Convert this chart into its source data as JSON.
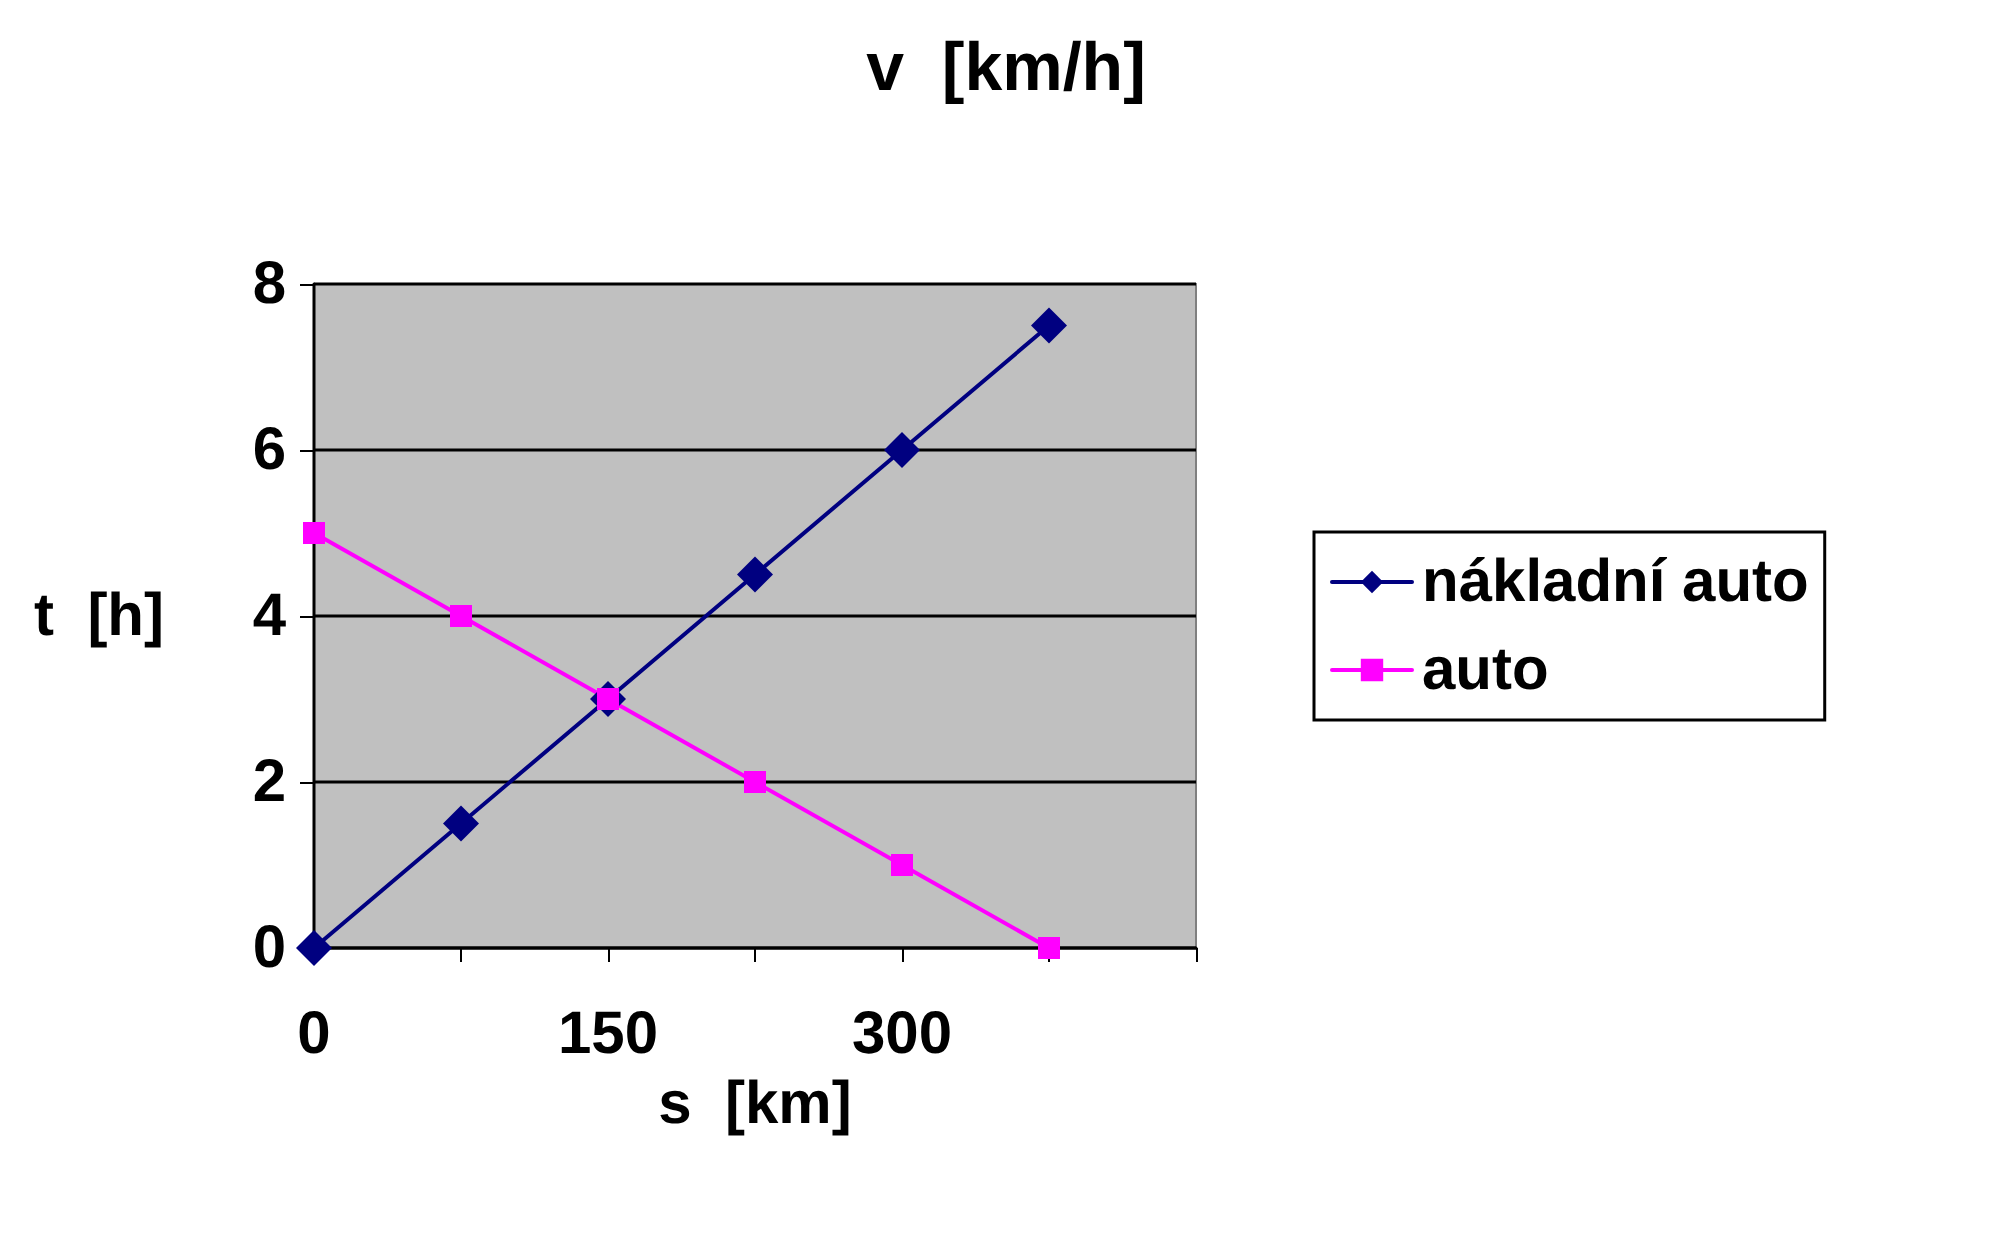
{
  "chart_data": {
    "type": "line",
    "title": "v  [km/h]",
    "xlabel": "s  [km]",
    "ylabel": "t  [h]",
    "xlim": [
      0,
      450
    ],
    "xticks": [
      0,
      {
        "value": 75,
        "label": null
      },
      150,
      {
        "value": 225,
        "label": null
      },
      300,
      {
        "value": 375,
        "label": null
      },
      {
        "value": 450,
        "label": null
      }
    ],
    "ylim": [
      0,
      8
    ],
    "yticks": [
      0,
      2,
      4,
      6,
      8
    ],
    "grid": "y",
    "legend": "right",
    "series": [
      {
        "name": "nákladní auto",
        "color": "#000080",
        "marker": "diamond",
        "x": [
          0,
          75,
          150,
          225,
          300,
          375
        ],
        "values": [
          0,
          1.5,
          3,
          4.5,
          6,
          7.5
        ]
      },
      {
        "name": "auto",
        "color": "#ff00ff",
        "marker": "square",
        "x": [
          0,
          75,
          150,
          225,
          300,
          375
        ],
        "values": [
          5,
          4,
          3,
          2,
          1,
          0
        ]
      }
    ]
  }
}
